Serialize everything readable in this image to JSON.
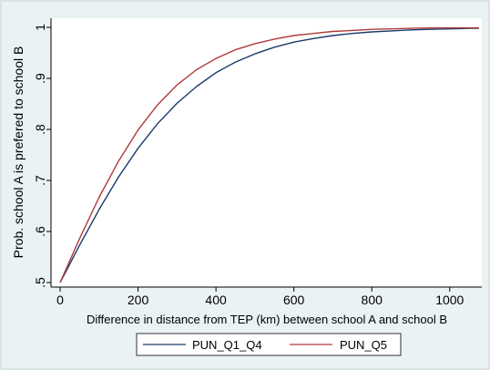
{
  "chart_data": {
    "type": "line",
    "title": "",
    "xlabel": "Difference in distance from TEP (km) between school A and school B",
    "ylabel": "Prob. school A is prefered to school B",
    "xlim": [
      0,
      1080
    ],
    "ylim": [
      0.5,
      1.0
    ],
    "x_ticks": [
      0,
      200,
      400,
      600,
      800,
      1000
    ],
    "x_tick_labels": [
      "0",
      "200",
      "400",
      "600",
      "800",
      "1000"
    ],
    "y_ticks": [
      0.5,
      0.6,
      0.7,
      0.8,
      0.9,
      1.0
    ],
    "y_tick_labels": [
      ".5",
      ".6",
      ".7",
      ".8",
      ".9",
      "1"
    ],
    "grid": false,
    "legend_position": "bottom",
    "x": [
      0,
      50,
      100,
      150,
      200,
      250,
      300,
      350,
      400,
      450,
      500,
      550,
      600,
      650,
      700,
      750,
      800,
      850,
      900,
      950,
      1000,
      1050,
      1075
    ],
    "series": [
      {
        "name": "PUN_Q1_Q4",
        "color": "#1a3a6b",
        "values": [
          0.5,
          0.573,
          0.643,
          0.707,
          0.763,
          0.811,
          0.851,
          0.884,
          0.911,
          0.932,
          0.948,
          0.961,
          0.971,
          0.978,
          0.984,
          0.988,
          0.991,
          0.993,
          0.995,
          0.996,
          0.997,
          0.998,
          0.998
        ]
      },
      {
        "name": "PUN_Q5",
        "color": "#b03a3a",
        "values": [
          0.5,
          0.586,
          0.667,
          0.738,
          0.799,
          0.848,
          0.887,
          0.917,
          0.939,
          0.956,
          0.968,
          0.977,
          0.984,
          0.988,
          0.992,
          0.994,
          0.996,
          0.997,
          0.998,
          0.999,
          0.999,
          0.999,
          0.999
        ]
      }
    ]
  }
}
